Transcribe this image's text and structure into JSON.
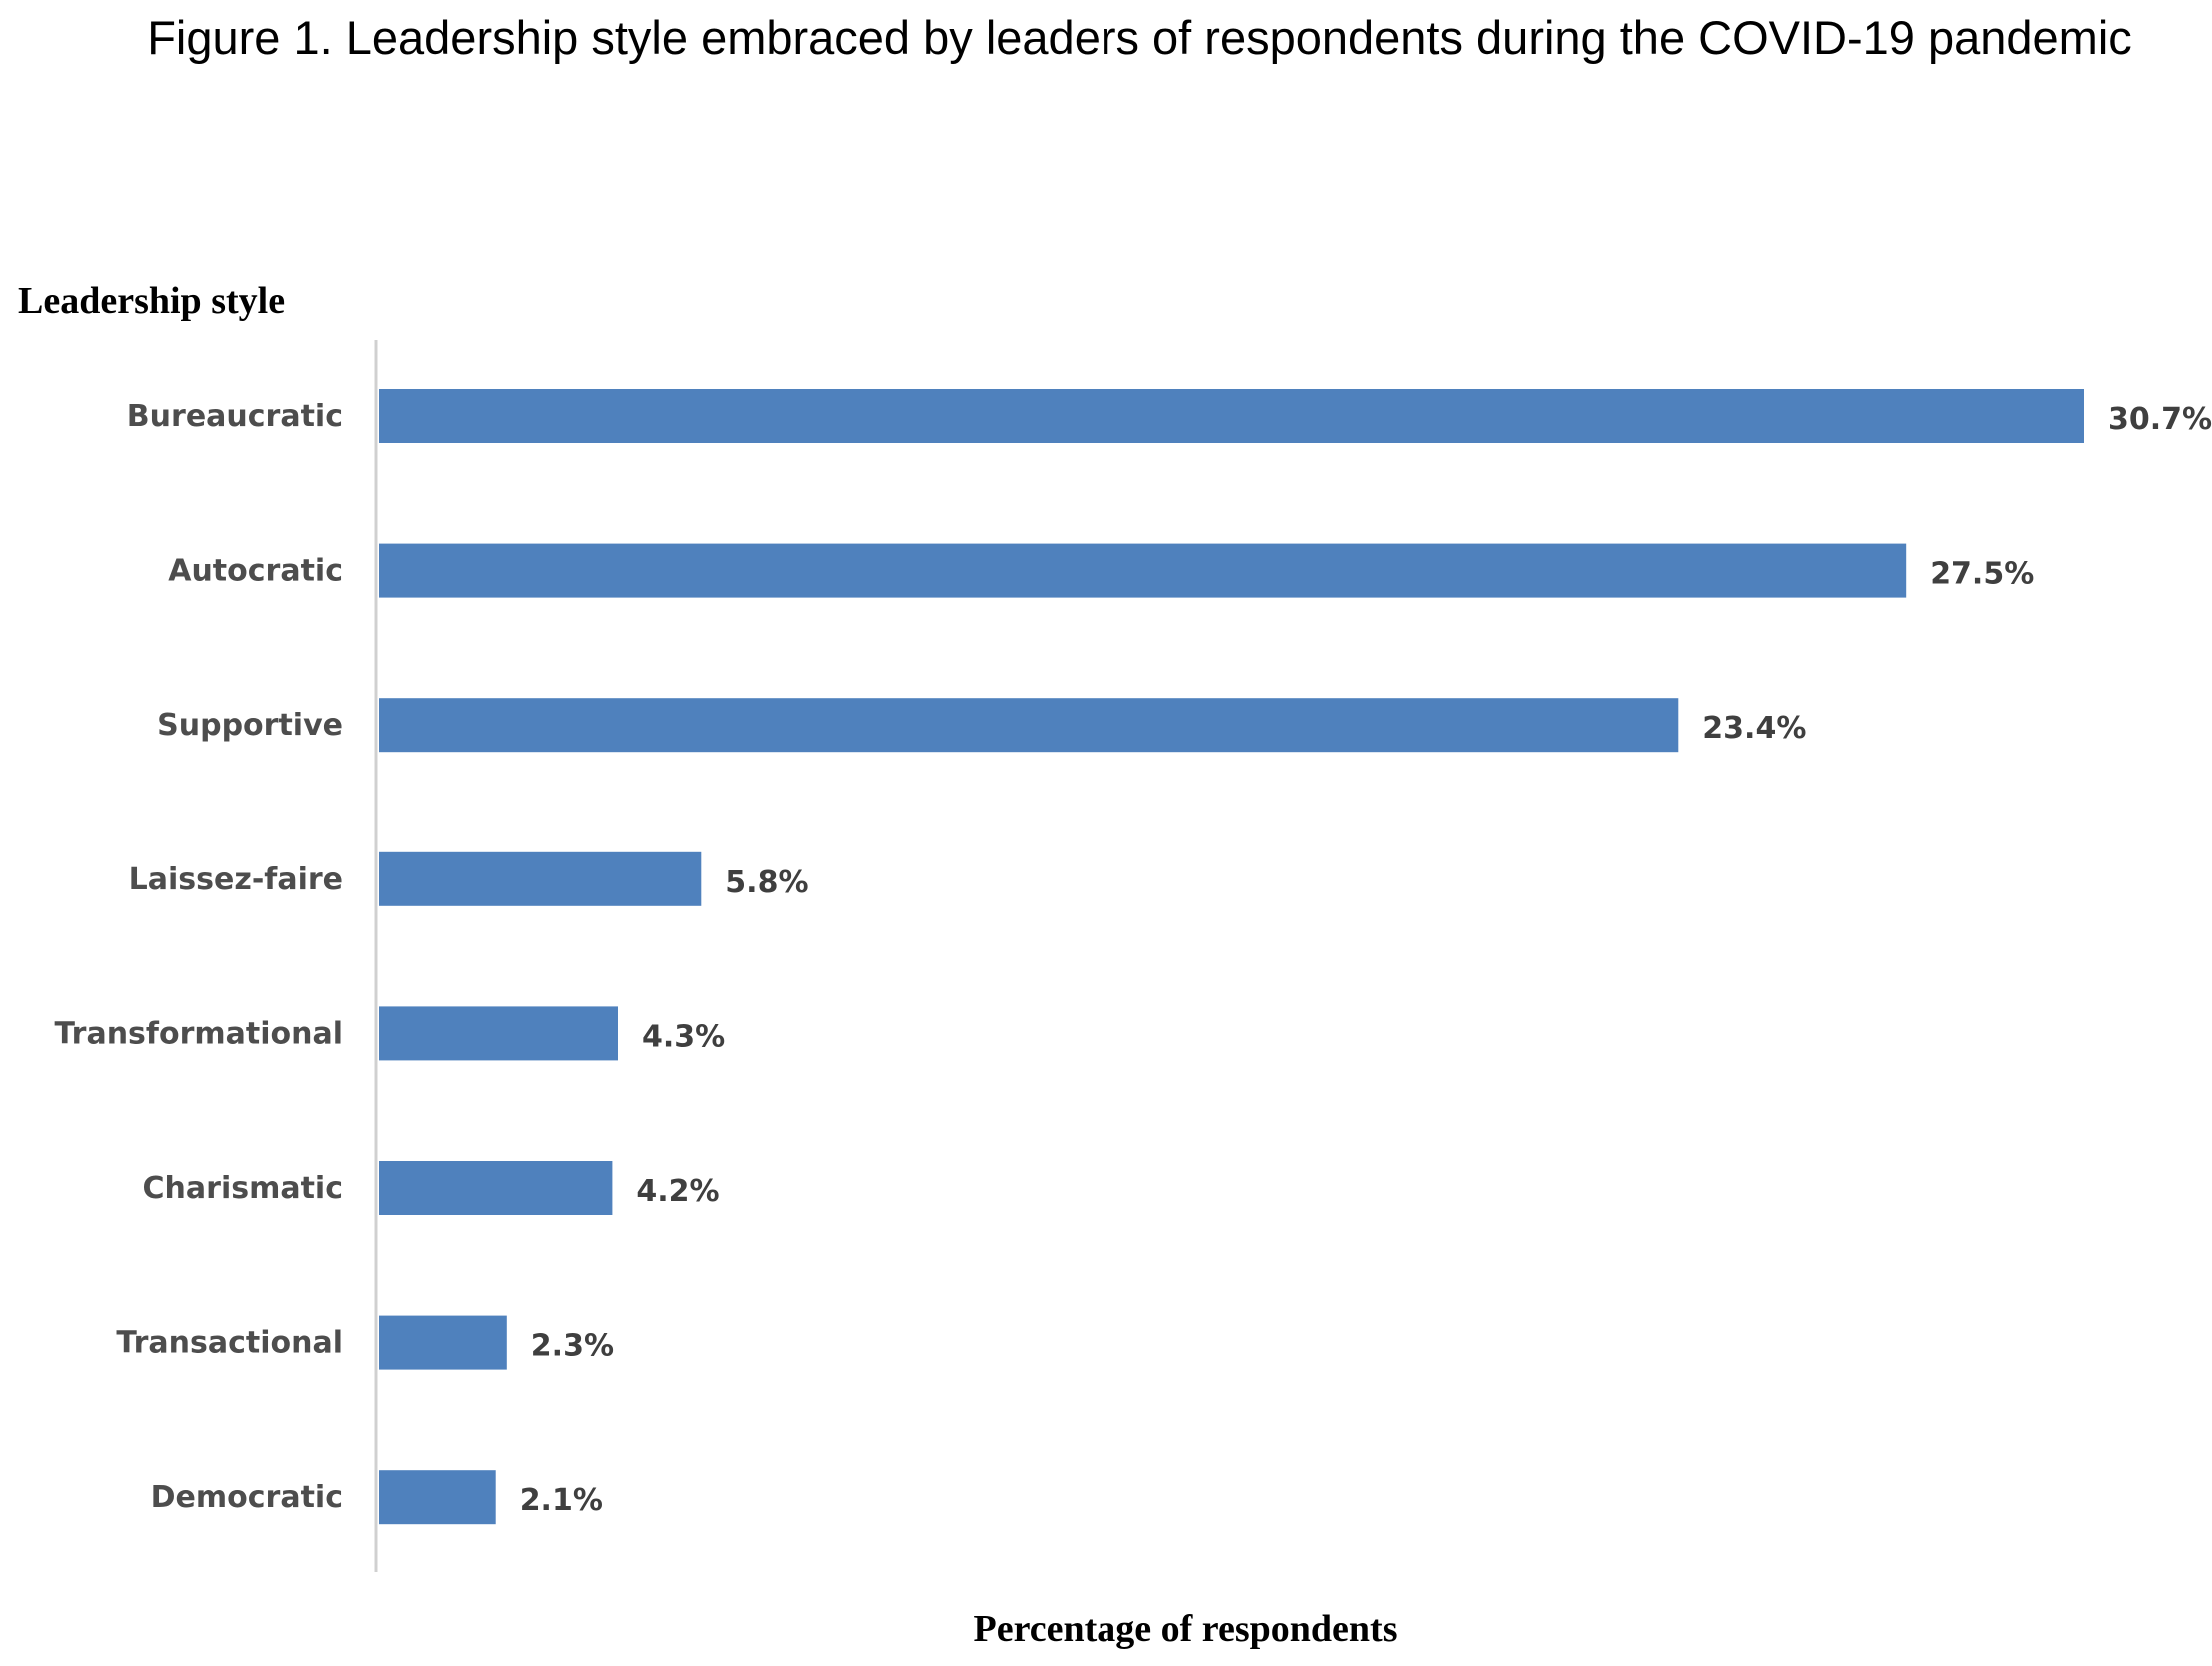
{
  "chart_data": {
    "type": "bar",
    "orientation": "horizontal",
    "title": "Figure 1. Leadership style embraced by leaders of respondents during the COVID-19 pandemic",
    "ylabel": "Leadership style",
    "xlabel": "Percentage of respondents",
    "categories": [
      "Bureaucratic",
      "Autocratic",
      "Supportive",
      "Laissez-faire",
      "Transformational",
      "Charismatic",
      "Transactional",
      "Democratic"
    ],
    "values": [
      30.7,
      27.5,
      23.4,
      5.8,
      4.3,
      4.2,
      2.3,
      2.1
    ],
    "value_labels": [
      "30.7%",
      "27.5%",
      "23.4%",
      "5.8%",
      "4.3%",
      "4.2%",
      "2.3%",
      "2.1%"
    ],
    "xlim": [
      0,
      30.7
    ],
    "grid": false,
    "bar_color": "#4f81bd",
    "axis_color": "#d0d0d0"
  }
}
